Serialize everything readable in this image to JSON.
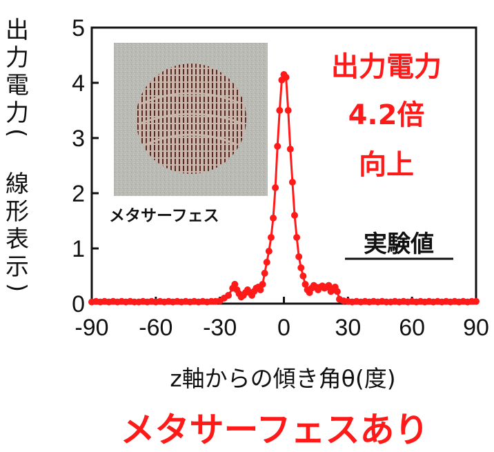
{
  "chart_data": {
    "type": "line",
    "ylabel": "出力電力(線形表示)",
    "xlabel": "z軸からの傾き角θ(度)",
    "x_ticks": [
      "-90",
      "-60",
      "-30",
      "0",
      "30",
      "60",
      "90"
    ],
    "y_ticks": [
      "0",
      "1",
      "2",
      "3",
      "4",
      "5"
    ],
    "xlim": [
      -90,
      90
    ],
    "ylim": [
      0,
      5
    ],
    "grid": false,
    "series": [
      {
        "color": "#ff1a1a",
        "marker": "circle",
        "x": [
          -90,
          -88,
          -86,
          -84,
          -82,
          -80,
          -78,
          -76,
          -74,
          -72,
          -70,
          -68,
          -66,
          -64,
          -62,
          -60,
          -58,
          -56,
          -54,
          -52,
          -50,
          -48,
          -46,
          -44,
          -42,
          -40,
          -38,
          -36,
          -34,
          -32,
          -30,
          -28,
          -26,
          -24,
          -23,
          -22,
          -21,
          -20,
          -19,
          -18,
          -17,
          -16,
          -15,
          -14,
          -13,
          -12,
          -11,
          -10,
          -9,
          -8,
          -7,
          -6,
          -5,
          -4,
          -3,
          -2,
          -1,
          0,
          1,
          2,
          3,
          4,
          5,
          6,
          7,
          8,
          9,
          10,
          11,
          12,
          13,
          14,
          15,
          16,
          17,
          18,
          19,
          20,
          21,
          22,
          23,
          24,
          25,
          26,
          28,
          30,
          32,
          34,
          36,
          38,
          40,
          42,
          44,
          46,
          48,
          50,
          52,
          54,
          56,
          58,
          60,
          62,
          64,
          66,
          68,
          70,
          72,
          74,
          76,
          78,
          80,
          82,
          84,
          86,
          88,
          90
        ],
        "y": [
          0.03,
          0.04,
          0.03,
          0.04,
          0.03,
          0.04,
          0.03,
          0.04,
          0.03,
          0.04,
          0.03,
          0.03,
          0.04,
          0.03,
          0.04,
          0.03,
          0.04,
          0.03,
          0.04,
          0.03,
          0.04,
          0.03,
          0.04,
          0.03,
          0.04,
          0.03,
          0.04,
          0.03,
          0.04,
          0.04,
          0.05,
          0.1,
          0.15,
          0.28,
          0.35,
          0.25,
          0.18,
          0.12,
          0.15,
          0.2,
          0.25,
          0.2,
          0.15,
          0.22,
          0.28,
          0.3,
          0.25,
          0.35,
          0.55,
          0.75,
          0.95,
          1.2,
          1.55,
          2.1,
          2.85,
          3.5,
          4.05,
          4.15,
          4.1,
          3.5,
          2.8,
          2.2,
          1.6,
          1.2,
          0.85,
          0.65,
          0.5,
          0.35,
          0.25,
          0.2,
          0.28,
          0.33,
          0.3,
          0.25,
          0.3,
          0.32,
          0.28,
          0.3,
          0.33,
          0.22,
          0.25,
          0.3,
          0.22,
          0.08,
          0.05,
          0.04,
          0.03,
          0.04,
          0.03,
          0.04,
          0.03,
          0.04,
          0.03,
          0.04,
          0.03,
          0.03,
          0.04,
          0.03,
          0.04,
          0.03,
          0.04,
          0.03,
          0.04,
          0.03,
          0.04,
          0.03,
          0.04,
          0.03,
          0.04,
          0.03,
          0.04,
          0.03,
          0.04,
          0.03,
          0.04,
          0.04
        ]
      }
    ]
  },
  "annotations": {
    "power_gain": [
      "出力電力",
      "4.2倍",
      "向上"
    ],
    "experimental": "実験値",
    "inset_caption": "メタサーフェス",
    "footer": "メタサーフェスあり"
  },
  "colors": {
    "accent": "#ff1a1a",
    "axis": "#111111"
  }
}
